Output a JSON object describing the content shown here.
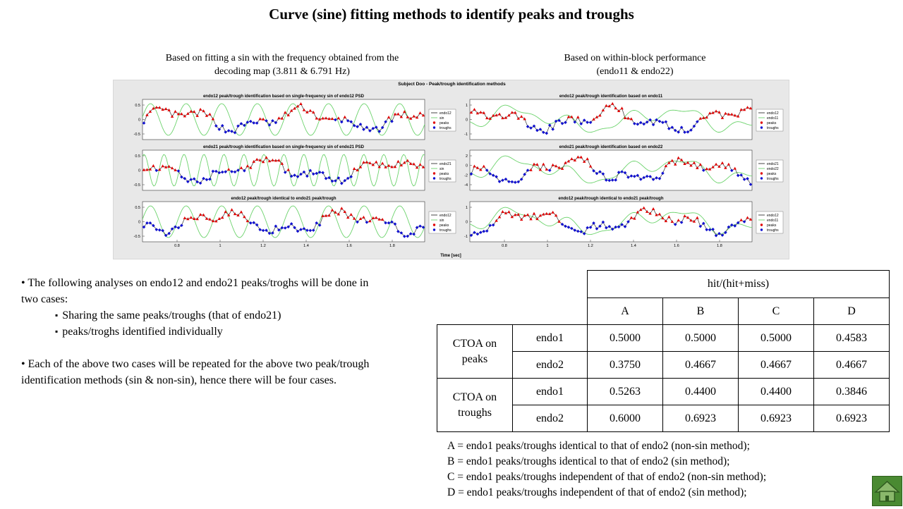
{
  "title": "Curve (sine) fitting methods to identify peaks and troughs",
  "captions": {
    "left": [
      "Based on fitting  a sin with the frequency  obtained from the",
      "decoding map (3.811 & 6.791 Hz)"
    ],
    "right": [
      "Based on within-block  performance",
      "(endo11 & endo22)"
    ]
  },
  "figure": {
    "title": "Subject Doo - Peak/trough identification methods",
    "xlabel": "Time [sec]",
    "colors": {
      "signal": "#333333",
      "fit": "#6cd36c",
      "peaks": "#e00000",
      "troughs": "#1010d0"
    },
    "panels": [
      {
        "title": "endo12 peak/trough identification based on single-frequency sin of endo12 PSD",
        "legend": [
          "endo12",
          "sin",
          "peaks",
          "troughs"
        ],
        "yticks": [
          "0.5",
          "0",
          "-0.5"
        ],
        "xticks": []
      },
      {
        "title": "endo12 peak/trough identification based on endo11",
        "legend": [
          "endo12",
          "endo11",
          "peaks",
          "troughs"
        ],
        "yticks": [
          "1",
          "0",
          "-1"
        ],
        "xticks": []
      },
      {
        "title": "endo21 peak/trough identification based on single-frequency sin of endo21 PSD",
        "legend": [
          "endo21",
          "sin",
          "peaks",
          "troughs"
        ],
        "yticks": [
          "0.5",
          "0",
          "-0.5"
        ],
        "xticks": []
      },
      {
        "title": "endo21 peak/trough identification based on endo22",
        "legend": [
          "endo21",
          "endo22",
          "peaks",
          "troughs"
        ],
        "yticks": [
          "2",
          "0",
          "-2",
          "-4"
        ],
        "xticks": []
      },
      {
        "title": "endo12 peak/trough identical to endo21 peak/trough",
        "legend": [
          "endo12",
          "sin",
          "peaks",
          "troughs"
        ],
        "yticks": [
          "0.5",
          "0",
          "-0.5"
        ],
        "xticks": [
          "0.8",
          "1",
          "1.2",
          "1.4",
          "1.6",
          "1.8"
        ]
      },
      {
        "title": "endo12 peak/trough identical to endo21 peak/trough",
        "legend": [
          "endo12",
          "endo11",
          "peaks",
          "troughs"
        ],
        "yticks": [
          "1",
          "0",
          "-1"
        ],
        "xticks": [
          "0.8",
          "1",
          "1.2",
          "1.4",
          "1.6",
          "1.8"
        ]
      }
    ]
  },
  "bullets": {
    "b1": "• The following  analyses on endo12 and endo21 peaks/troghs will be done in two cases:",
    "s1": "Sharing the same peaks/troughs (that of endo21)",
    "s2": "peaks/troghs identified  individually",
    "b2": "• Each of the above two cases will  be repeated for the above two peak/trough identification  methods (sin & non-sin), hence there will be four cases."
  },
  "table": {
    "header": "hit/(hit+miss)",
    "cols": [
      "A",
      "B",
      "C",
      "D"
    ],
    "groups": [
      {
        "label": "CTOA on peaks",
        "rows": [
          {
            "name": "endo1",
            "values": [
              "0.5000",
              "0.5000",
              "0.5000",
              "0.4583"
            ]
          },
          {
            "name": "endo2",
            "values": [
              "0.3750",
              "0.4667",
              "0.4667",
              "0.4667"
            ]
          }
        ]
      },
      {
        "label": "CTOA on troughs",
        "rows": [
          {
            "name": "endo1",
            "values": [
              "0.5263",
              "0.4400",
              "0.4400",
              "0.3846"
            ]
          },
          {
            "name": "endo2",
            "values": [
              "0.6000",
              "0.6923",
              "0.6923",
              "0.6923"
            ]
          }
        ]
      }
    ]
  },
  "notes": [
    "A = endo1 peaks/troughs identical  to that of endo2 (non-sin method);",
    "B = endo1 peaks/troughs identical  to that of endo2 (sin method);",
    "C = endo1 peaks/troughs independent of that of endo2 (non-sin method);",
    "D = endo1 peaks/troughs independent  of that of endo2 (sin method);"
  ],
  "home_icon": "home-icon"
}
